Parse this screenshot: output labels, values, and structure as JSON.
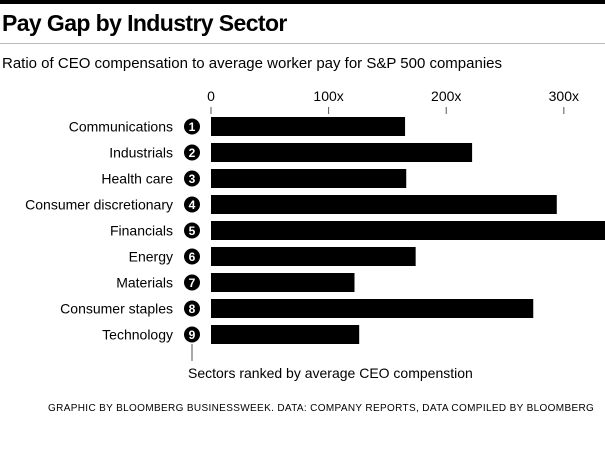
{
  "header": {
    "title": "Pay Gap by Industry Sector",
    "subtitle": "Ratio of CEO compensation to average worker pay for S&P 500 companies"
  },
  "footer": {
    "credit": "GRAPHIC BY BLOOMBERG BUSINESSWEEK. DATA: COMPANY REPORTS, DATA COMPILED BY BLOOMBERG"
  },
  "chart_data": {
    "type": "bar",
    "orientation": "horizontal",
    "title": "Pay Gap by Industry Sector",
    "subtitle": "Ratio of CEO compensation to average worker pay for S&P 500 companies",
    "categories": [
      "Communications",
      "Industrials",
      "Health care",
      "Consumer discretionary",
      "Financials",
      "Energy",
      "Materials",
      "Consumer staples",
      "Technology"
    ],
    "ranks": [
      "1",
      "2",
      "3",
      "4",
      "5",
      "6",
      "7",
      "8",
      "9"
    ],
    "values": [
      165,
      222,
      166,
      294,
      340,
      174,
      122,
      274,
      126
    ],
    "xticks": [
      {
        "value": 0,
        "label": "0"
      },
      {
        "value": 100,
        "label": "100x"
      },
      {
        "value": 200,
        "label": "200x"
      },
      {
        "value": 300,
        "label": "300x"
      }
    ],
    "xlim": [
      0,
      335
    ],
    "grid": false,
    "bar_color": "#000000",
    "rank_note": "Sectors ranked by average CEO compenstion"
  }
}
